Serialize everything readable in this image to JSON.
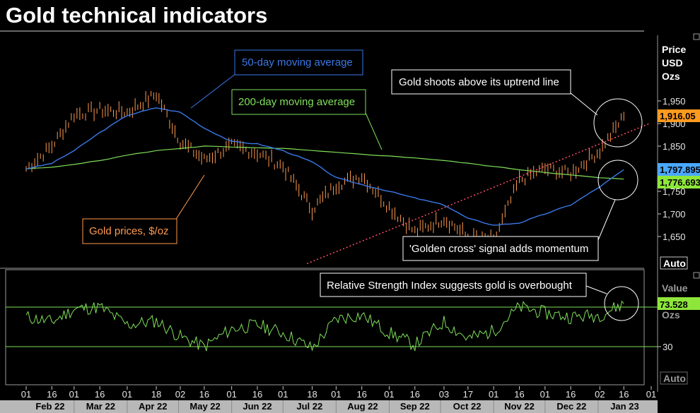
{
  "title": "Gold technical indicators",
  "price_axis": {
    "header": [
      "Price",
      "USD",
      "Ozs"
    ],
    "ticks": [
      "1,950",
      "1,900",
      "1,850",
      "1,800",
      "1,750",
      "1,700",
      "1,650"
    ],
    "auto_label": "Auto"
  },
  "rsi_axis": {
    "header": [
      "Value",
      "Ozs"
    ],
    "ticks": [
      "30"
    ],
    "auto_label": "Auto"
  },
  "last_values": {
    "price": "1,916.05",
    "ma50": "1,797.895",
    "ma200": "1,776.693",
    "rsi": "73.528"
  },
  "annotations": {
    "ma50": "50-day moving average",
    "ma200": "200-day moving average",
    "uptrend": "Gold shoots above its uptrend line",
    "prices": "Gold prices, $/oz",
    "golden_cross": "'Golden cross' signal adds momentum",
    "rsi": "Relative Strength Index suggests gold is overbought"
  },
  "colors": {
    "background": "#000000",
    "price_bars": "#ff9a4d",
    "ma50": "#3a78e8",
    "ma200": "#7fe05a",
    "rsi": "#7fe05a",
    "trendline": "#ff4d6a",
    "price_tag": "#ff9a1f",
    "ma50_tag": "#4aa8ff",
    "ma200_tag": "#8ee63a",
    "rsi_tag": "#8ee63a"
  },
  "chart_data": [
    {
      "type": "line",
      "title": "Gold technical indicators",
      "xlabel": "",
      "ylabel": "Price USD Ozs",
      "ylim": [
        1630,
        1990
      ],
      "x": [
        "2022-02-01",
        "2022-02-16",
        "2022-03-01",
        "2022-03-16",
        "2022-04-01",
        "2022-04-18",
        "2022-05-02",
        "2022-05-16",
        "2022-06-01",
        "2022-06-16",
        "2022-07-01",
        "2022-07-18",
        "2022-08-01",
        "2022-08-16",
        "2022-09-01",
        "2022-09-16",
        "2022-10-03",
        "2022-10-17",
        "2022-11-01",
        "2022-11-16",
        "2022-12-01",
        "2022-12-16",
        "2023-01-02",
        "2023-01-16"
      ],
      "series": [
        {
          "name": "Gold prices, $/oz",
          "values": [
            1800,
            1850,
            1920,
            1930,
            1925,
            1965,
            1860,
            1820,
            1850,
            1835,
            1805,
            1710,
            1765,
            1785,
            1715,
            1660,
            1690,
            1650,
            1640,
            1775,
            1800,
            1790,
            1840,
            1916
          ]
        },
        {
          "name": "50-day moving average",
          "values": [
            1800,
            1812,
            1840,
            1880,
            1918,
            1935,
            1925,
            1890,
            1860,
            1855,
            1840,
            1815,
            1780,
            1765,
            1750,
            1735,
            1720,
            1690,
            1675,
            1680,
            1700,
            1720,
            1760,
            1798
          ]
        },
        {
          "name": "200-day moving average",
          "values": [
            1800,
            1803,
            1810,
            1818,
            1830,
            1840,
            1845,
            1850,
            1848,
            1846,
            1845,
            1840,
            1836,
            1832,
            1828,
            1824,
            1818,
            1812,
            1805,
            1798,
            1792,
            1786,
            1780,
            1777
          ]
        }
      ],
      "trendline": {
        "from": {
          "x": "2022-07-15",
          "y": 1590
        },
        "to": {
          "x": "2023-01-31",
          "y": 1900
        },
        "style": "dotted"
      },
      "x_tick_labels": [
        "01",
        "16",
        "01",
        "16",
        "01",
        "18",
        "02",
        "16",
        "01",
        "16",
        "01",
        "18",
        "01",
        "16",
        "01",
        "16",
        "03",
        "17",
        "01",
        "16",
        "01",
        "16",
        "02",
        "16",
        "01"
      ],
      "x_month_labels": [
        "Feb 22",
        "Mar 22",
        "Apr 22",
        "May 22",
        "Jun 22",
        "Jul 22",
        "Aug 22",
        "Sep 22",
        "Oct 22",
        "Nov 22",
        "Dec 22",
        "Jan 23"
      ],
      "grid": false,
      "legend": "none"
    },
    {
      "type": "line",
      "title": "",
      "ylabel": "Value Ozs",
      "ylim": [
        15,
        95
      ],
      "x": [
        "2022-02-01",
        "2022-02-16",
        "2022-03-01",
        "2022-03-16",
        "2022-04-01",
        "2022-04-18",
        "2022-05-02",
        "2022-05-16",
        "2022-06-01",
        "2022-06-16",
        "2022-07-01",
        "2022-07-18",
        "2022-08-01",
        "2022-08-16",
        "2022-09-01",
        "2022-09-16",
        "2022-10-03",
        "2022-10-17",
        "2022-11-01",
        "2022-11-16",
        "2022-12-01",
        "2022-12-16",
        "2023-01-02",
        "2023-01-16"
      ],
      "series": [
        {
          "name": "Relative Strength Index",
          "values": [
            60,
            55,
            68,
            70,
            52,
            56,
            40,
            30,
            48,
            52,
            44,
            28,
            58,
            62,
            44,
            32,
            55,
            38,
            46,
            70,
            64,
            60,
            62,
            73.5
          ]
        }
      ],
      "reference_lines": [
        70,
        30
      ],
      "grid": false,
      "legend": "none"
    }
  ]
}
